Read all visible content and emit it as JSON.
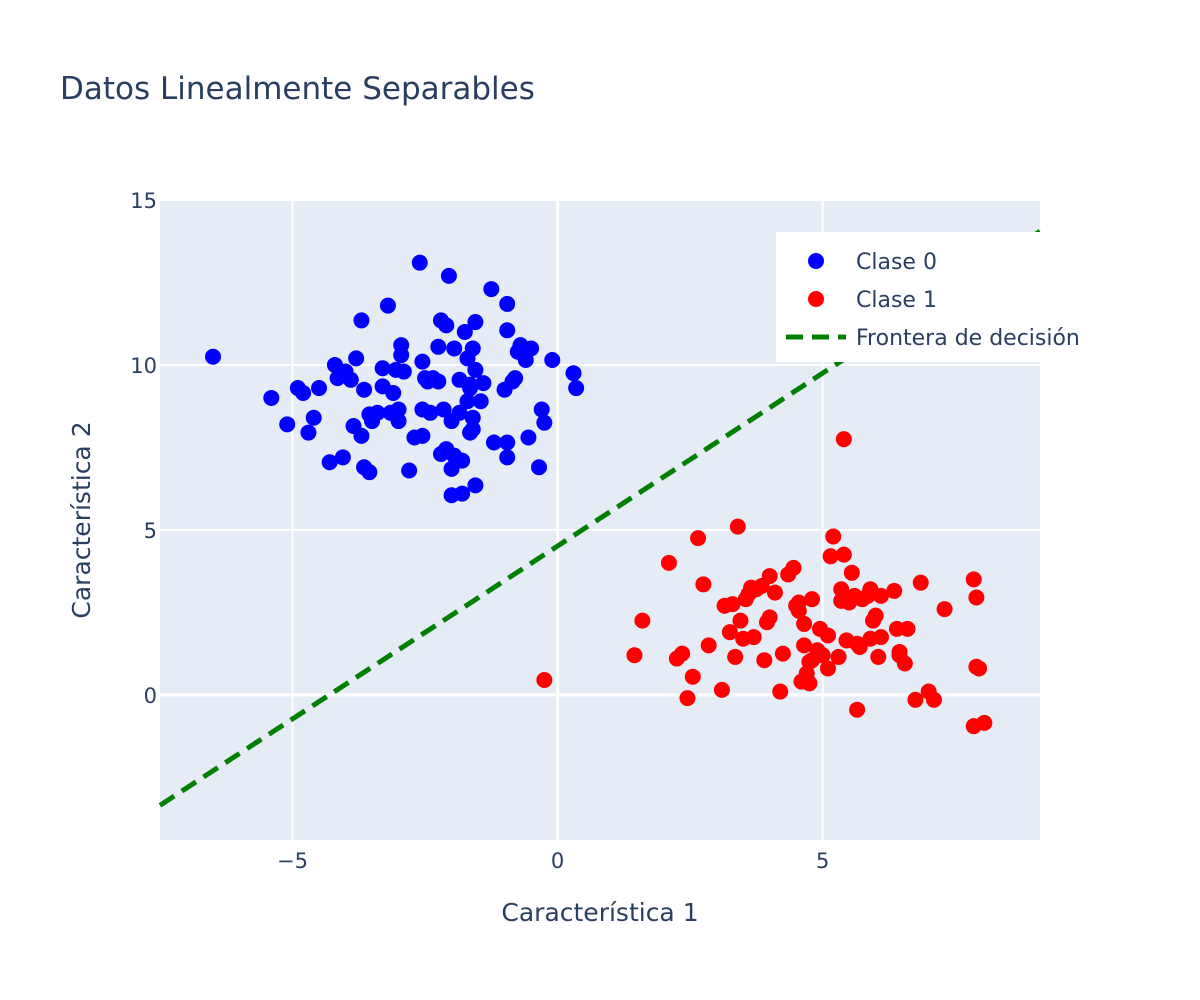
{
  "chart_data": {
    "type": "scatter",
    "title": "Datos Linealmente Separables",
    "xlabel": "Característica 1",
    "ylabel": "Característica 2",
    "xlim": [
      -7.5,
      9.1
    ],
    "ylim": [
      -4.4,
      15
    ],
    "x_ticks": [
      -5,
      0,
      5
    ],
    "x_tick_labels": [
      "−5",
      "0",
      "5"
    ],
    "y_ticks": [
      0,
      5,
      10,
      15
    ],
    "y_tick_labels": [
      "0",
      "5",
      "10",
      "15"
    ],
    "grid": true,
    "legend_position": "top-right",
    "series": [
      {
        "name": "Clase 0",
        "type": "scatter",
        "color": "#0000ff",
        "points": [
          [
            -6.5,
            10.25
          ],
          [
            -5.4,
            9.0
          ],
          [
            -5.1,
            8.2
          ],
          [
            -4.9,
            9.3
          ],
          [
            -4.8,
            9.15
          ],
          [
            -4.7,
            7.95
          ],
          [
            -4.6,
            8.4
          ],
          [
            -4.5,
            9.3
          ],
          [
            -4.3,
            7.05
          ],
          [
            -4.2,
            10.0
          ],
          [
            -4.15,
            9.6
          ],
          [
            -4.05,
            7.2
          ],
          [
            -4.0,
            9.8
          ],
          [
            -3.9,
            9.55
          ],
          [
            -3.85,
            8.15
          ],
          [
            -3.8,
            10.2
          ],
          [
            -3.7,
            11.35
          ],
          [
            -3.7,
            7.85
          ],
          [
            -3.65,
            6.9
          ],
          [
            -3.65,
            9.25
          ],
          [
            -3.55,
            6.75
          ],
          [
            -3.55,
            8.5
          ],
          [
            -3.5,
            8.3
          ],
          [
            -3.4,
            8.55
          ],
          [
            -3.3,
            9.35
          ],
          [
            -3.3,
            9.9
          ],
          [
            -3.2,
            11.8
          ],
          [
            -3.15,
            8.55
          ],
          [
            -3.1,
            9.15
          ],
          [
            -3.05,
            9.85
          ],
          [
            -3.0,
            8.65
          ],
          [
            -3.0,
            8.3
          ],
          [
            -2.95,
            10.6
          ],
          [
            -2.95,
            10.3
          ],
          [
            -2.9,
            9.8
          ],
          [
            -2.8,
            6.8
          ],
          [
            -2.7,
            7.8
          ],
          [
            -2.6,
            13.1
          ],
          [
            -2.55,
            7.85
          ],
          [
            -2.55,
            8.65
          ],
          [
            -2.55,
            10.1
          ],
          [
            -2.5,
            9.6
          ],
          [
            -2.45,
            9.5
          ],
          [
            -2.4,
            8.55
          ],
          [
            -2.35,
            9.6
          ],
          [
            -2.25,
            10.55
          ],
          [
            -2.25,
            9.5
          ],
          [
            -2.2,
            11.35
          ],
          [
            -2.2,
            7.3
          ],
          [
            -2.15,
            8.65
          ],
          [
            -2.1,
            11.2
          ],
          [
            -2.1,
            7.45
          ],
          [
            -2.05,
            12.7
          ],
          [
            -2.0,
            6.85
          ],
          [
            -2.0,
            6.05
          ],
          [
            -2.0,
            8.3
          ],
          [
            -1.95,
            10.5
          ],
          [
            -1.95,
            7.25
          ],
          [
            -1.85,
            9.55
          ],
          [
            -1.85,
            8.55
          ],
          [
            -1.8,
            6.1
          ],
          [
            -1.8,
            7.1
          ],
          [
            -1.75,
            11.0
          ],
          [
            -1.7,
            8.9
          ],
          [
            -1.7,
            10.2
          ],
          [
            -1.65,
            9.4
          ],
          [
            -1.65,
            7.95
          ],
          [
            -1.6,
            10.5
          ],
          [
            -1.6,
            8.05
          ],
          [
            -1.55,
            11.3
          ],
          [
            -1.55,
            9.85
          ],
          [
            -1.55,
            6.35
          ],
          [
            -1.45,
            8.9
          ],
          [
            -1.4,
            9.45
          ],
          [
            -1.6,
            8.4
          ],
          [
            -1.65,
            9.3
          ],
          [
            -1.25,
            12.3
          ],
          [
            -1.2,
            7.65
          ],
          [
            -1.0,
            9.25
          ],
          [
            -0.95,
            11.05
          ],
          [
            -0.95,
            11.85
          ],
          [
            -0.95,
            7.2
          ],
          [
            -0.95,
            7.65
          ],
          [
            -0.85,
            9.5
          ],
          [
            -0.8,
            9.6
          ],
          [
            -0.75,
            10.4
          ],
          [
            -0.7,
            10.6
          ],
          [
            -0.6,
            10.15
          ],
          [
            -0.55,
            7.8
          ],
          [
            -0.5,
            10.5
          ],
          [
            -0.35,
            6.9
          ],
          [
            -0.3,
            8.65
          ],
          [
            -0.25,
            8.25
          ],
          [
            -0.1,
            10.15
          ],
          [
            0.3,
            9.75
          ],
          [
            0.35,
            9.3
          ]
        ]
      },
      {
        "name": "Clase 1",
        "type": "scatter",
        "color": "#ff0000",
        "points": [
          [
            -0.25,
            0.45
          ],
          [
            1.45,
            1.2
          ],
          [
            1.6,
            2.25
          ],
          [
            2.1,
            4.0
          ],
          [
            2.25,
            1.1
          ],
          [
            2.35,
            1.25
          ],
          [
            2.45,
            -0.1
          ],
          [
            2.55,
            0.55
          ],
          [
            2.65,
            4.75
          ],
          [
            2.75,
            3.35
          ],
          [
            2.85,
            1.5
          ],
          [
            3.1,
            0.15
          ],
          [
            3.15,
            2.7
          ],
          [
            3.25,
            1.9
          ],
          [
            3.3,
            2.75
          ],
          [
            3.35,
            1.15
          ],
          [
            3.4,
            5.1
          ],
          [
            3.45,
            2.25
          ],
          [
            3.5,
            1.7
          ],
          [
            3.55,
            2.9
          ],
          [
            3.6,
            3.05
          ],
          [
            3.65,
            3.25
          ],
          [
            3.7,
            1.75
          ],
          [
            3.75,
            3.2
          ],
          [
            3.85,
            3.3
          ],
          [
            3.9,
            1.05
          ],
          [
            3.95,
            2.2
          ],
          [
            4.0,
            2.35
          ],
          [
            4.0,
            3.6
          ],
          [
            4.1,
            3.1
          ],
          [
            4.2,
            0.1
          ],
          [
            4.25,
            1.25
          ],
          [
            4.35,
            3.65
          ],
          [
            4.45,
            3.85
          ],
          [
            4.5,
            2.7
          ],
          [
            4.55,
            2.8
          ],
          [
            4.55,
            2.55
          ],
          [
            4.6,
            0.4
          ],
          [
            4.65,
            1.5
          ],
          [
            4.65,
            2.15
          ],
          [
            4.7,
            0.65
          ],
          [
            4.75,
            0.35
          ],
          [
            4.75,
            1.0
          ],
          [
            4.8,
            1.05
          ],
          [
            4.8,
            2.9
          ],
          [
            4.9,
            1.35
          ],
          [
            4.95,
            2.0
          ],
          [
            5.0,
            1.2
          ],
          [
            5.1,
            0.8
          ],
          [
            5.1,
            1.8
          ],
          [
            5.15,
            4.2
          ],
          [
            5.2,
            4.8
          ],
          [
            5.3,
            1.15
          ],
          [
            5.35,
            3.2
          ],
          [
            5.4,
            7.75
          ],
          [
            5.4,
            4.25
          ],
          [
            5.45,
            1.65
          ],
          [
            5.5,
            2.8
          ],
          [
            5.55,
            3.7
          ],
          [
            5.6,
            3.0
          ],
          [
            5.65,
            -0.45
          ],
          [
            5.7,
            1.45
          ],
          [
            5.75,
            2.9
          ],
          [
            5.85,
            3.0
          ],
          [
            5.9,
            1.7
          ],
          [
            5.9,
            3.2
          ],
          [
            5.95,
            2.25
          ],
          [
            6.0,
            2.4
          ],
          [
            6.05,
            1.15
          ],
          [
            6.1,
            3.0
          ],
          [
            6.1,
            1.75
          ],
          [
            6.35,
            3.15
          ],
          [
            6.4,
            2.0
          ],
          [
            6.45,
            1.3
          ],
          [
            6.55,
            0.95
          ],
          [
            6.6,
            2.0
          ],
          [
            6.75,
            -0.15
          ],
          [
            6.85,
            3.4
          ],
          [
            7.0,
            0.1
          ],
          [
            7.1,
            -0.15
          ],
          [
            7.3,
            2.6
          ],
          [
            7.85,
            -0.95
          ],
          [
            7.85,
            3.5
          ],
          [
            7.9,
            2.95
          ],
          [
            7.9,
            0.85
          ],
          [
            7.95,
            0.8
          ],
          [
            8.05,
            -0.85
          ],
          [
            5.35,
            2.85
          ],
          [
            5.65,
            1.55
          ],
          [
            6.45,
            1.2
          ]
        ]
      },
      {
        "name": "Frontera de decisión",
        "type": "line",
        "dash": "dash",
        "color": "#008000",
        "x": [
          -7.5,
          9.1
        ],
        "y": [
          -3.35,
          14.05
        ]
      }
    ]
  }
}
